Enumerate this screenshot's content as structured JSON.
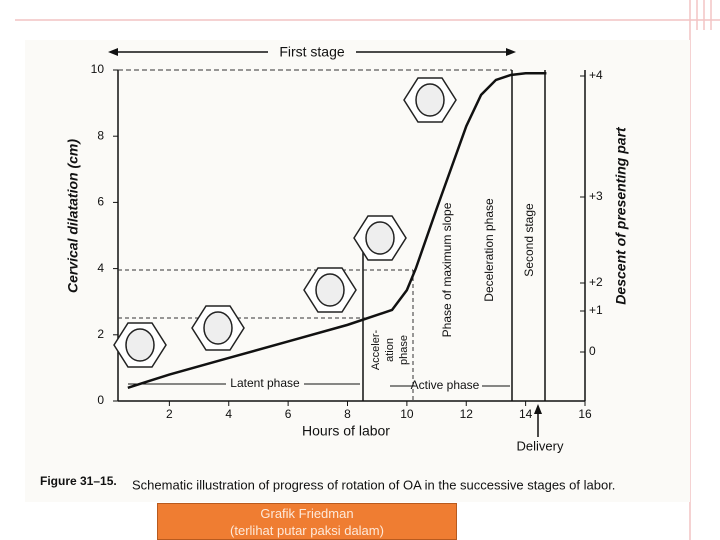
{
  "chart_data": {
    "type": "line",
    "caption_label": "Figure 31–15.",
    "caption": "Schematic illustration of progress of rotation of OA in the successive stages of labor.",
    "x_label": "Hours of labor",
    "y_label": "Cervical dilatation (cm)",
    "y2_label": "Descent of presenting part",
    "x": [
      0.6,
      2,
      4,
      6,
      8,
      9.5,
      10,
      10.3,
      11,
      12,
      12.5,
      13,
      13.5,
      14,
      14.7
    ],
    "series": [
      {
        "name": "Cervical dilatation",
        "color": "#111111",
        "values": [
          0.4,
          0.8,
          1.3,
          1.8,
          2.3,
          2.75,
          3.35,
          4.0,
          5.8,
          8.3,
          9.25,
          9.7,
          9.85,
          9.9,
          9.9
        ]
      }
    ],
    "xlim": [
      0,
      16
    ],
    "xticks": [
      2,
      4,
      6,
      8,
      10,
      12,
      14,
      16
    ],
    "ylim": [
      0,
      10
    ],
    "yticks": [
      0,
      2,
      4,
      6,
      8,
      10
    ],
    "y2ticks": [
      {
        "value": 0,
        "label": "0"
      },
      {
        "value": 1,
        "label": "+1"
      },
      {
        "value": 2,
        "label": "+2"
      },
      {
        "value": 3,
        "label": "+3"
      },
      {
        "value": 4,
        "label": "+4"
      }
    ],
    "annotations": [
      "First stage",
      "Second stage",
      "Latent phase",
      "Active phase",
      "Acceler-",
      "ation",
      "phase",
      "Phase of maximum slope",
      "Deceleration phase",
      "Delivery"
    ]
  },
  "slide_note": {
    "title": "Grafik Friedman",
    "subtitle": "(terlihat putar paksi dalam)"
  }
}
